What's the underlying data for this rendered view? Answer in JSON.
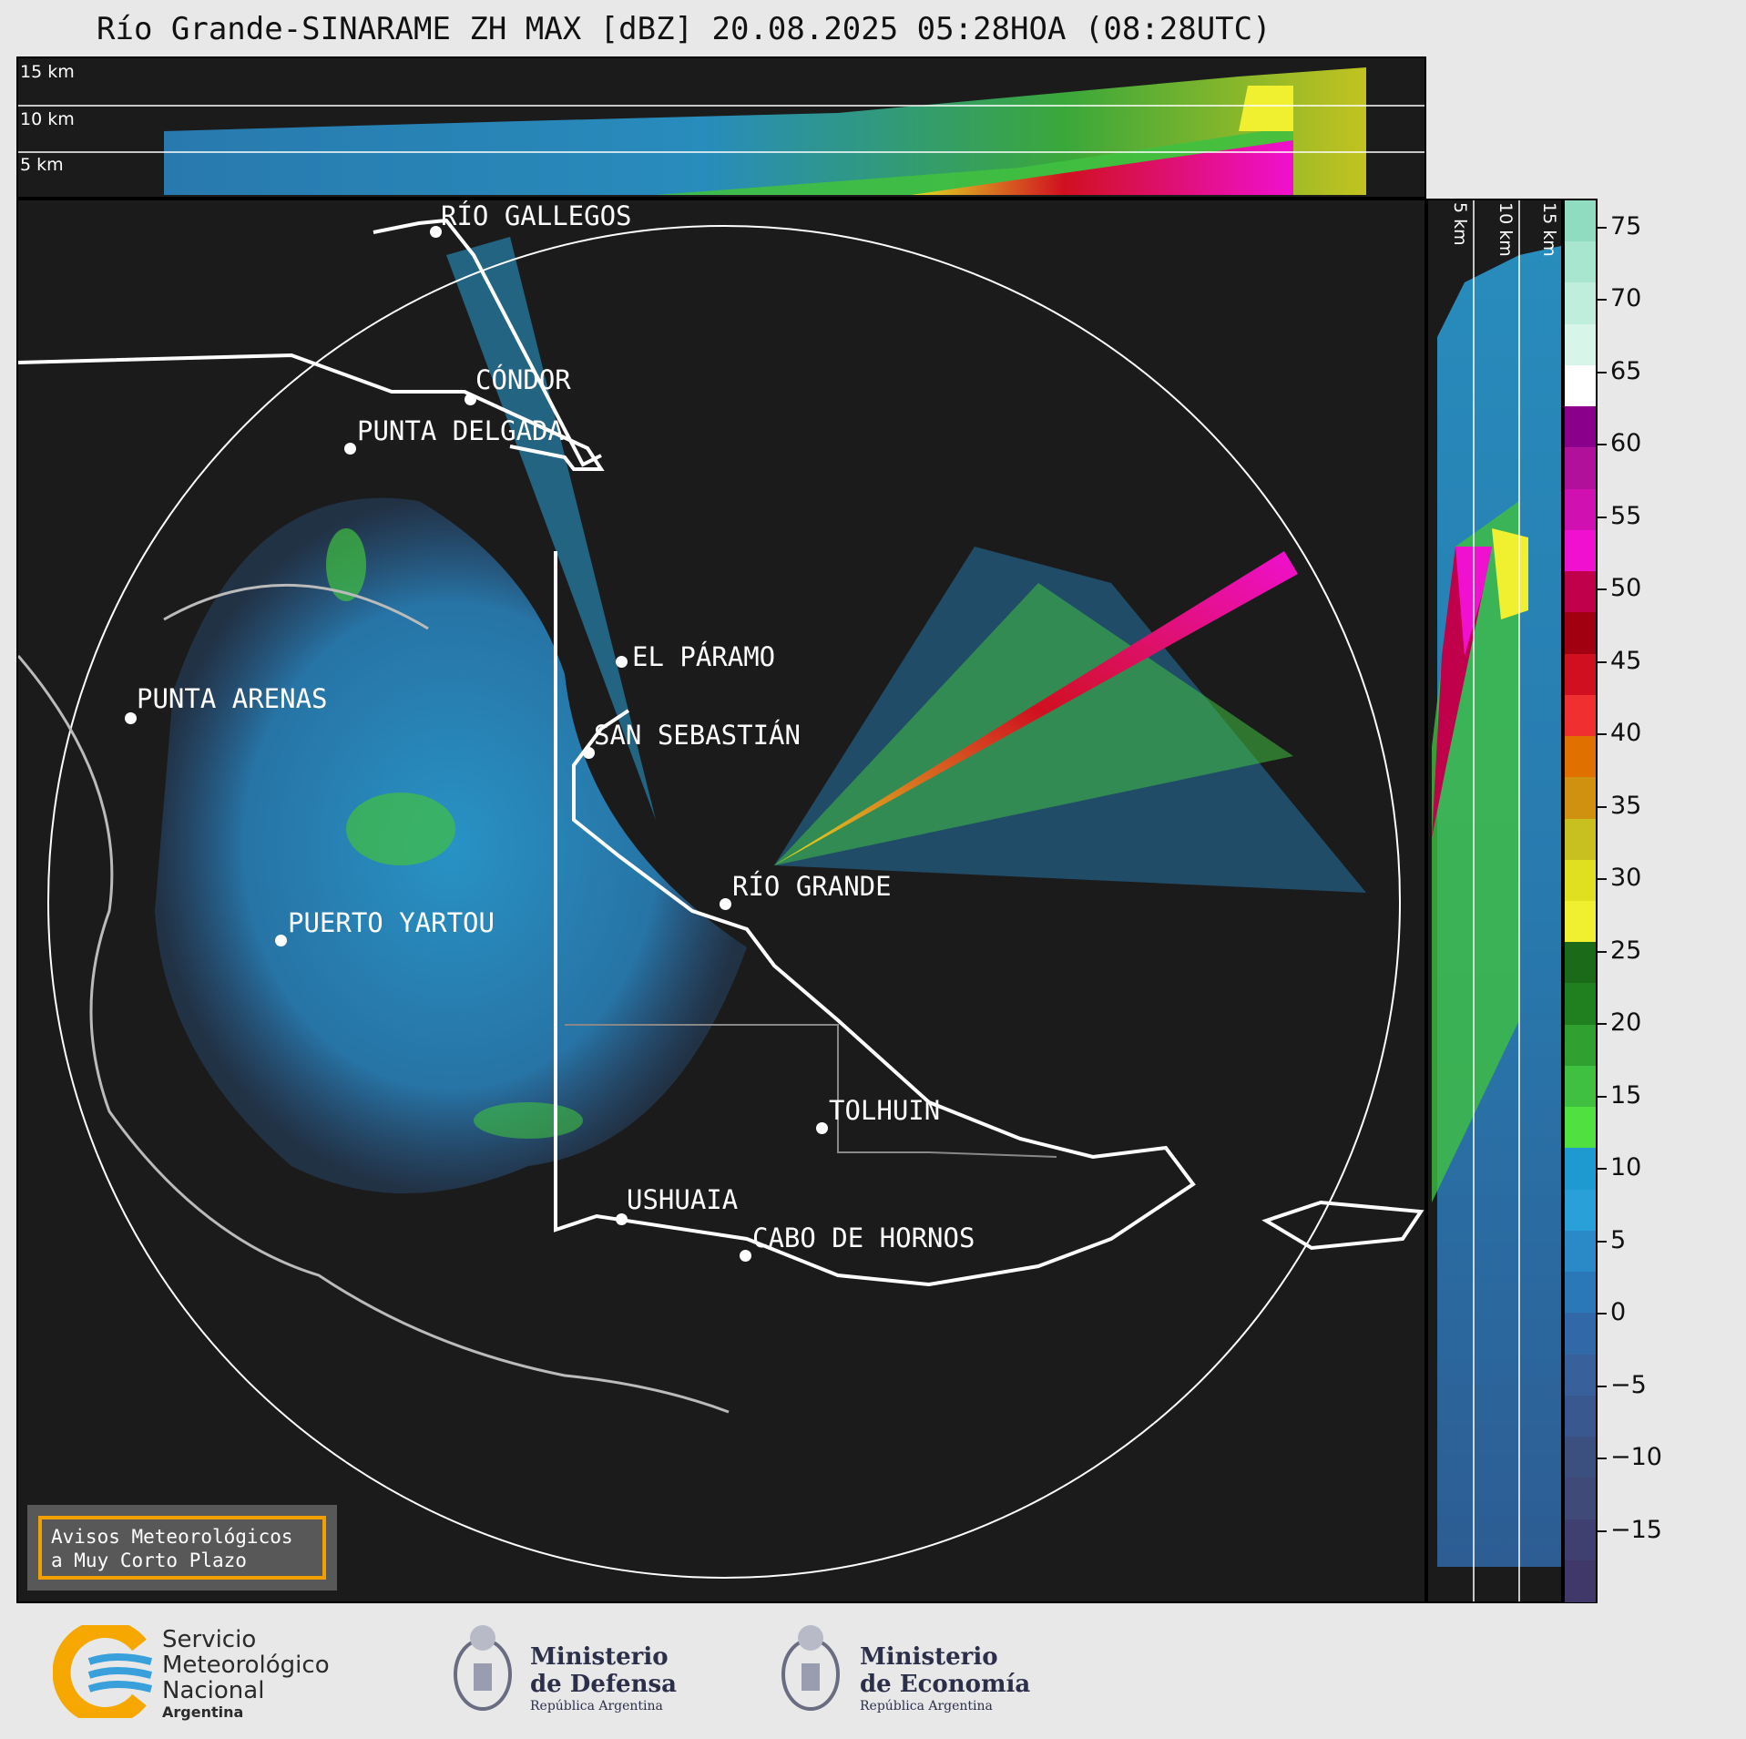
{
  "title": "Río Grande-SINARAME ZH MAX [dBZ] 20.08.2025 05:28HOA (08:28UTC)",
  "top_panel": {
    "height_labels": [
      "15 km",
      "10 km",
      "5 km"
    ]
  },
  "right_panel": {
    "height_labels": [
      "5 km",
      "10 km",
      "15 km"
    ]
  },
  "map": {
    "cities": [
      {
        "name": "RÍO GALLEGOS"
      },
      {
        "name": "CÓNDOR"
      },
      {
        "name": "PUNTA DELGADA"
      },
      {
        "name": "EL PÁRAMO"
      },
      {
        "name": "PUNTA ARENAS"
      },
      {
        "name": "SAN SEBASTIÁN"
      },
      {
        "name": "RÍO GRANDE"
      },
      {
        "name": "PUERTO YARTOU"
      },
      {
        "name": "TOLHUIN"
      },
      {
        "name": "USHUAIA"
      },
      {
        "name": "CABO DE HORNOS"
      }
    ]
  },
  "colorbar": {
    "unit": "dBZ",
    "tick_labels": [
      "75",
      "70",
      "65",
      "60",
      "55",
      "50",
      "45",
      "40",
      "35",
      "30",
      "25",
      "20",
      "15",
      "10",
      "5",
      "0",
      "−5",
      "−10",
      "−15"
    ],
    "colors": [
      "#8fdcc0",
      "#a8e6cf",
      "#c0eedc",
      "#d8f5ea",
      "#ffffff",
      "#8b008b",
      "#b0109a",
      "#d010b0",
      "#f010d0",
      "#c0004a",
      "#a00010",
      "#d01020",
      "#f03030",
      "#e07000",
      "#d09010",
      "#c8c020",
      "#e0e020",
      "#f0f030",
      "#1a6a1a",
      "#208020",
      "#30a030",
      "#40c040",
      "#50e040",
      "#1e9ad0",
      "#2aa0d8",
      "#2a8ac8",
      "#2a78b8",
      "#3068a8",
      "#38609a",
      "#3a5890",
      "#3c5080",
      "#404a78",
      "#404070",
      "#403868"
    ],
    "min": -20,
    "max": 77
  },
  "footer": {
    "avisos": [
      "Avisos Meteorológicos",
      "a Muy Corto Plazo"
    ],
    "smn": [
      "Servicio",
      "Meteorológico",
      "Nacional",
      "Argentina"
    ],
    "defensa": [
      "Ministerio",
      "de Defensa",
      "República Argentina"
    ],
    "economia": [
      "Ministerio",
      "de Economía",
      "República Argentina"
    ]
  }
}
